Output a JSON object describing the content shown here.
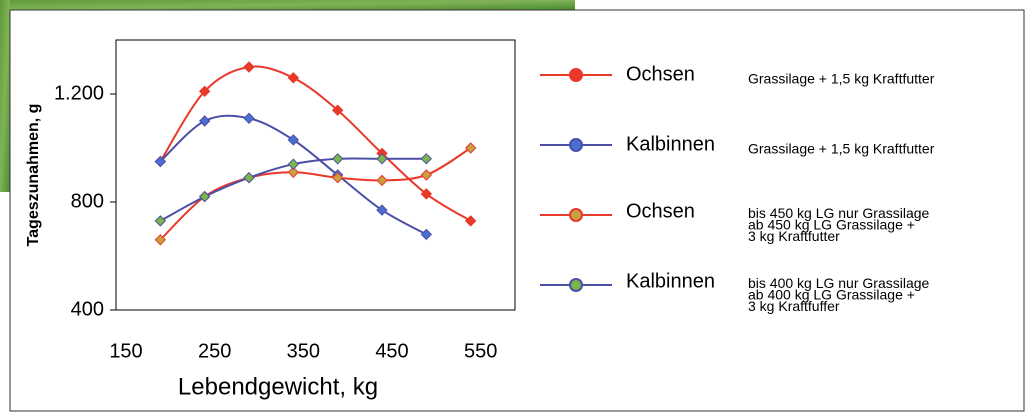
{
  "chart_data": {
    "type": "line",
    "x_label": "Lebendgewicht, kg",
    "y_label": "Tageszunahmen, g",
    "x": [
      200,
      250,
      300,
      350,
      400,
      450,
      500,
      550
    ],
    "xlim": [
      150,
      600
    ],
    "xticks": [
      150,
      250,
      350,
      450,
      550
    ],
    "ylim": [
      400,
      1400
    ],
    "yticks": [
      400,
      800,
      {
        "value": 1200,
        "label": "1.200"
      }
    ],
    "series": [
      {
        "name": "Ochsen",
        "note": [
          "Grassilage + 1,5 kg Kraftfutter"
        ],
        "color": "#e8392a",
        "marker_color": "#e8392a",
        "values": [
          950,
          1210,
          1300,
          1260,
          1140,
          980,
          830,
          730
        ]
      },
      {
        "name": "Kalbinnen",
        "note": [
          "Grassilage + 1,5 kg Kraftfutter"
        ],
        "color": "#4b4fa8",
        "marker_color": "#4b6fd0",
        "values": [
          950,
          1100,
          1110,
          1030,
          900,
          770,
          680,
          null
        ]
      },
      {
        "name": "Ochsen",
        "note": [
          "bis 450 kg LG nur Grassilage",
          "ab 450 kg LG Grassilage +",
          "3 kg Kraftfutter"
        ],
        "color": "#e8392a",
        "marker_color": "#c8a040",
        "values": [
          660,
          820,
          890,
          910,
          890,
          880,
          900,
          1000
        ]
      },
      {
        "name": "Kalbinnen",
        "note": [
          "bis 400 kg LG nur Grassilage",
          "ab 400 kg LG Grassilage +",
          "3 kg Kraftfuffer"
        ],
        "color": "#4b4fa8",
        "marker_color": "#7ab648",
        "values": [
          730,
          820,
          890,
          940,
          960,
          960,
          960,
          null
        ]
      }
    ]
  }
}
